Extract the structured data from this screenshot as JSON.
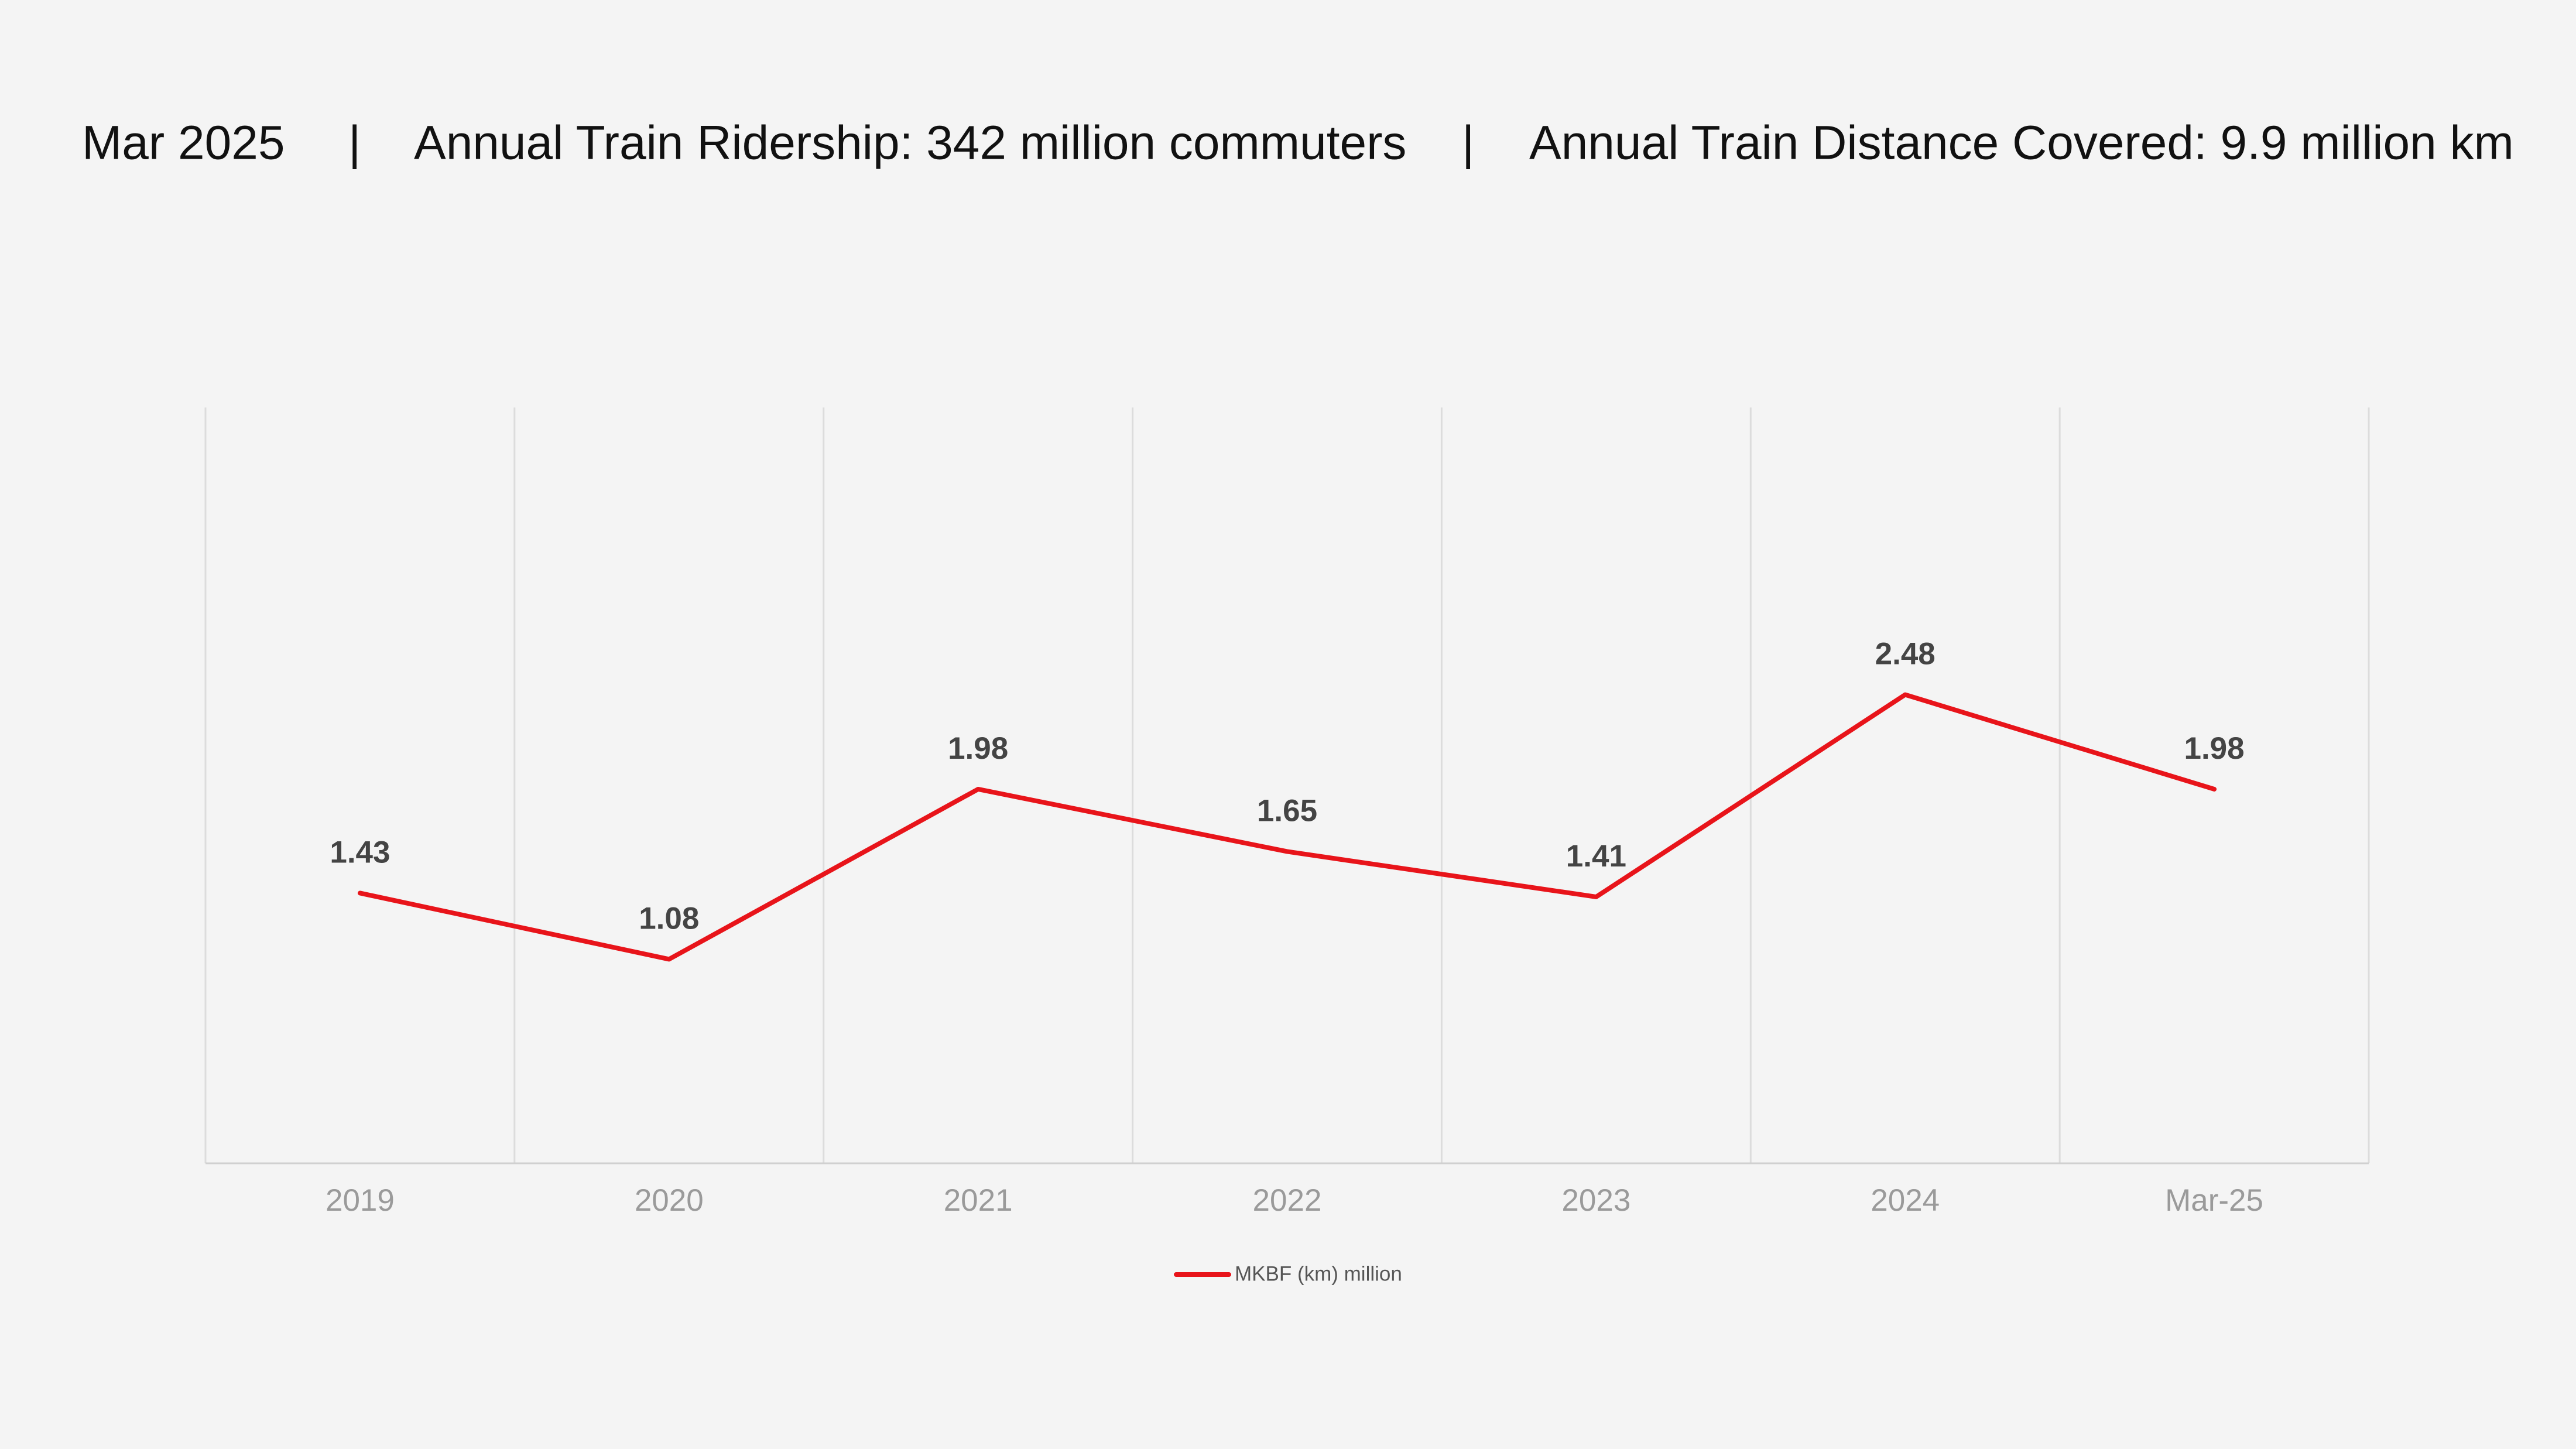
{
  "header": {
    "items": [
      "Mar 2025",
      "|",
      "Annual Train Ridership: 342 million commuters",
      "|",
      "Annual Train Distance Covered: 9.9 million km"
    ]
  },
  "chart_data": {
    "type": "line",
    "categories": [
      "2019",
      "2020",
      "2021",
      "2022",
      "2023",
      "2024",
      "Mar-25"
    ],
    "series": [
      {
        "name": "MKBF (km) million",
        "color": "#e8141a",
        "values": [
          1.43,
          1.08,
          1.98,
          1.65,
          1.41,
          2.48,
          1.98
        ]
      }
    ],
    "ylim": [
      0,
      4
    ],
    "grid": true,
    "legend": "bottom"
  }
}
